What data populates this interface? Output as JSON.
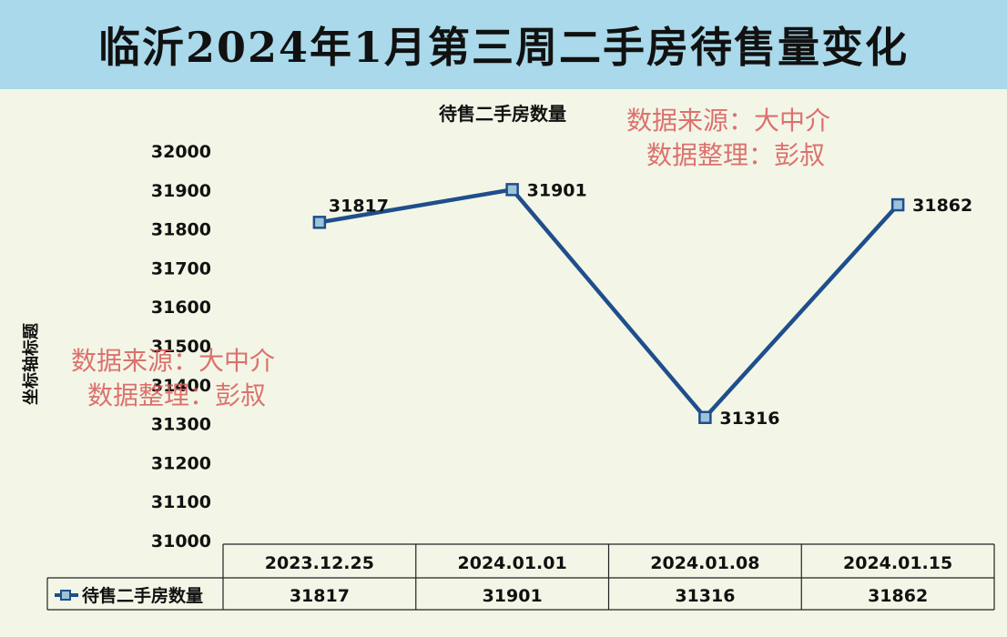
{
  "banner_title": "临沂2024年1月第三周二手房待售量变化",
  "watermarks": [
    {
      "line1": "数据来源：大中介",
      "line2": "数据整理：彭叔"
    },
    {
      "line1": "数据来源：大中介",
      "line2": "数据整理：彭叔"
    }
  ],
  "chart_data": {
    "type": "line",
    "title": "待售二手房数量",
    "ylabel": "坐标轴标题",
    "categories": [
      "2023.12.25",
      "2024.01.01",
      "2024.01.08",
      "2024.01.15"
    ],
    "series": [
      {
        "name": "待售二手房数量",
        "values": [
          31817,
          31901,
          31316,
          31862
        ],
        "color": "#1f4e8c"
      }
    ],
    "ylim": [
      31000,
      32000
    ],
    "yticks": [
      31000,
      31100,
      31200,
      31300,
      31400,
      31500,
      31600,
      31700,
      31800,
      31900,
      32000
    ],
    "data_table": true,
    "grid": false
  }
}
